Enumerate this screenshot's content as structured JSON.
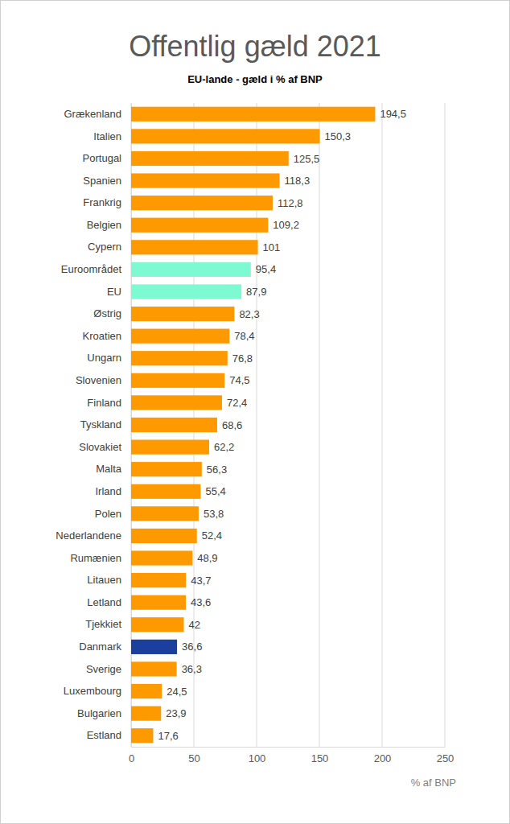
{
  "chart_data": {
    "type": "bar",
    "orientation": "horizontal",
    "title": "Offentlig gæld 2021",
    "subtitle": "EU-lande - gæld i % af BNP",
    "x_label": "% af BNP",
    "categories": [
      "Grækenland",
      "Italien",
      "Portugal",
      "Spanien",
      "Frankrig",
      "Belgien",
      "Cypern",
      "Euroområdet",
      "EU",
      "Østrig",
      "Kroatien",
      "Ungarn",
      "Slovenien",
      "Finland",
      "Tyskland",
      "Slovakiet",
      "Malta",
      "Irland",
      "Polen",
      "Nederlandene",
      "Rumænien",
      "Litauen",
      "Letland",
      "Tjekkiet",
      "Danmark",
      "Sverige",
      "Luxembourg",
      "Bulgarien",
      "Estland"
    ],
    "values": [
      194.5,
      150.3,
      125.5,
      118.3,
      112.8,
      109.2,
      101,
      95.4,
      87.9,
      82.3,
      78.4,
      76.8,
      74.5,
      72.4,
      68.6,
      62.2,
      56.3,
      55.4,
      53.8,
      52.4,
      48.9,
      43.7,
      43.6,
      42,
      36.6,
      36.3,
      24.5,
      23.9,
      17.6
    ],
    "value_labels": [
      "194,5",
      "150,3",
      "125,5",
      "118,3",
      "112,8",
      "109,2",
      "101",
      "95,4",
      "87,9",
      "82,3",
      "78,4",
      "76,8",
      "74,5",
      "72,4",
      "68,6",
      "62,2",
      "56,3",
      "55,4",
      "53,8",
      "52,4",
      "48,9",
      "43,7",
      "43,6",
      "42",
      "36,6",
      "36,3",
      "24,5",
      "23,9",
      "17,6"
    ],
    "colors": [
      "#ff9900",
      "#ff9900",
      "#ff9900",
      "#ff9900",
      "#ff9900",
      "#ff9900",
      "#ff9900",
      "#7dfad2",
      "#7dfad2",
      "#ff9900",
      "#ff9900",
      "#ff9900",
      "#ff9900",
      "#ff9900",
      "#ff9900",
      "#ff9900",
      "#ff9900",
      "#ff9900",
      "#ff9900",
      "#ff9900",
      "#ff9900",
      "#ff9900",
      "#ff9900",
      "#ff9900",
      "#1a3f9c",
      "#ff9900",
      "#ff9900",
      "#ff9900",
      "#ff9900"
    ],
    "xlim": [
      0,
      250
    ],
    "xticks": [
      0,
      50,
      100,
      150,
      200,
      250
    ],
    "grid": true,
    "data_labels": true
  }
}
